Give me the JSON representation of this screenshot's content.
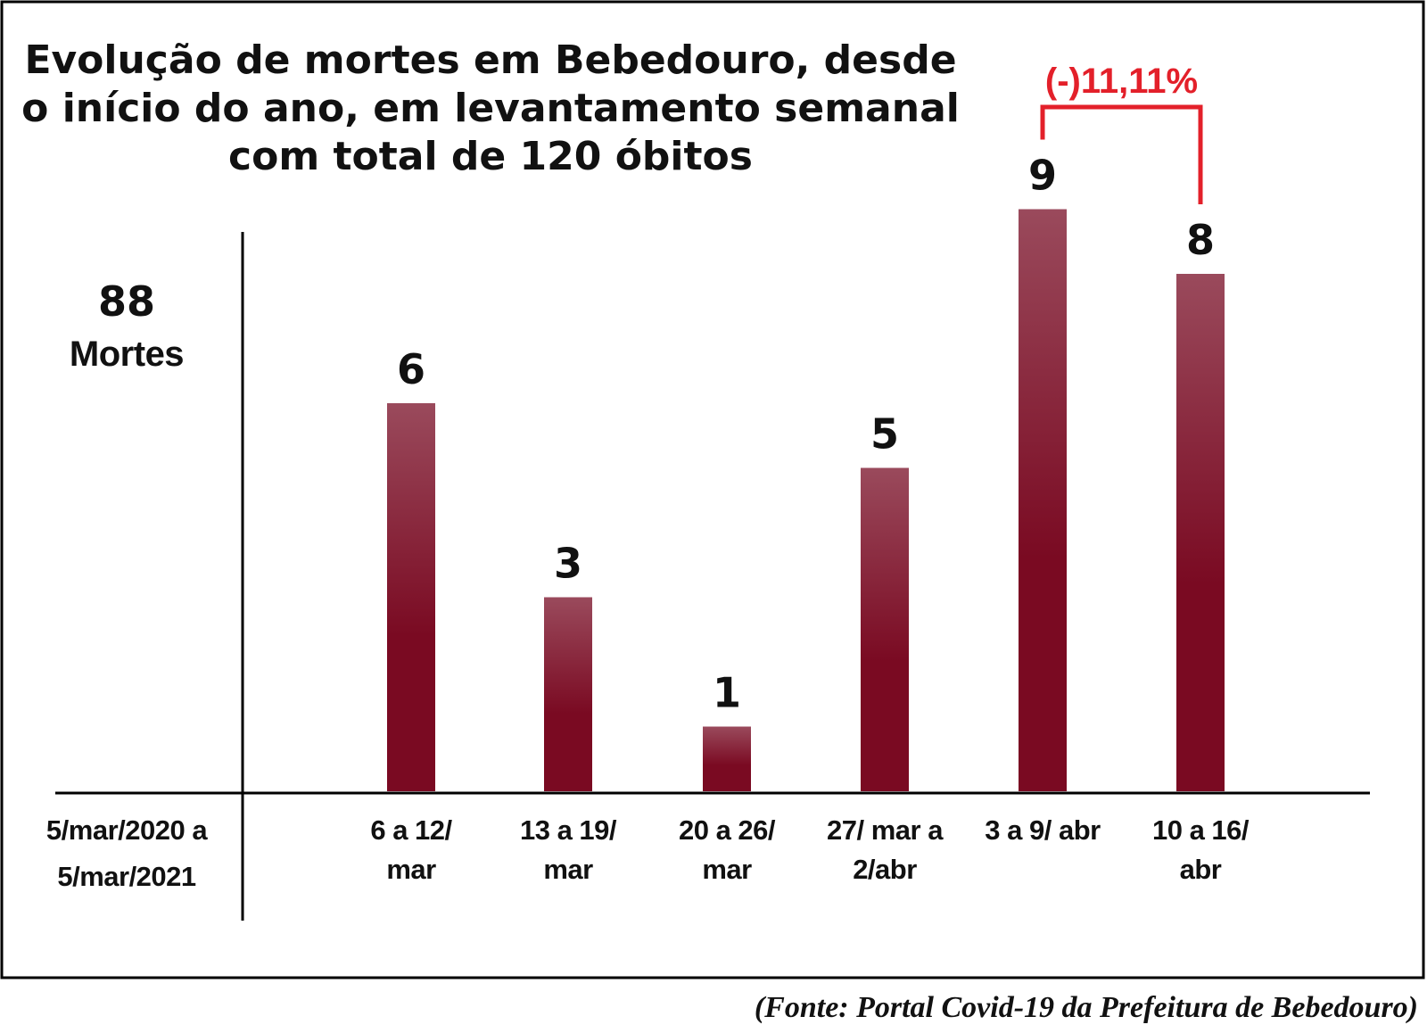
{
  "chart_data": {
    "type": "bar",
    "title": [
      "Evolução de mortes em Bebedouro, desde",
      "o início do ano, em levantamento semanal",
      "com total de 120 óbitos"
    ],
    "baseline": {
      "value": "88",
      "unit": "Mortes",
      "period": [
        "5/mar/2020 a",
        "5/mar/2021"
      ]
    },
    "categories": [
      [
        "6 a 12/",
        "mar"
      ],
      [
        "13 a 19/",
        "mar"
      ],
      [
        "20 a 26/",
        "mar"
      ],
      [
        "27/ mar a",
        "2/abr"
      ],
      [
        "3 a 9/ abr"
      ],
      [
        "10 a 16/",
        "abr"
      ]
    ],
    "values": [
      6,
      3,
      1,
      5,
      9,
      8
    ],
    "value_labels": [
      "6",
      "3",
      "1",
      "5",
      "9",
      "8"
    ],
    "annotation": {
      "text": "(-)11,11%",
      "from_index": 4,
      "to_index": 5,
      "color": "#e3202a"
    },
    "bar_color_top": "#9a4a5c",
    "bar_color_bottom": "#7a0a22",
    "source": "(Fonte: Portal Covid-19 da Prefeitura de Bebedouro)"
  }
}
